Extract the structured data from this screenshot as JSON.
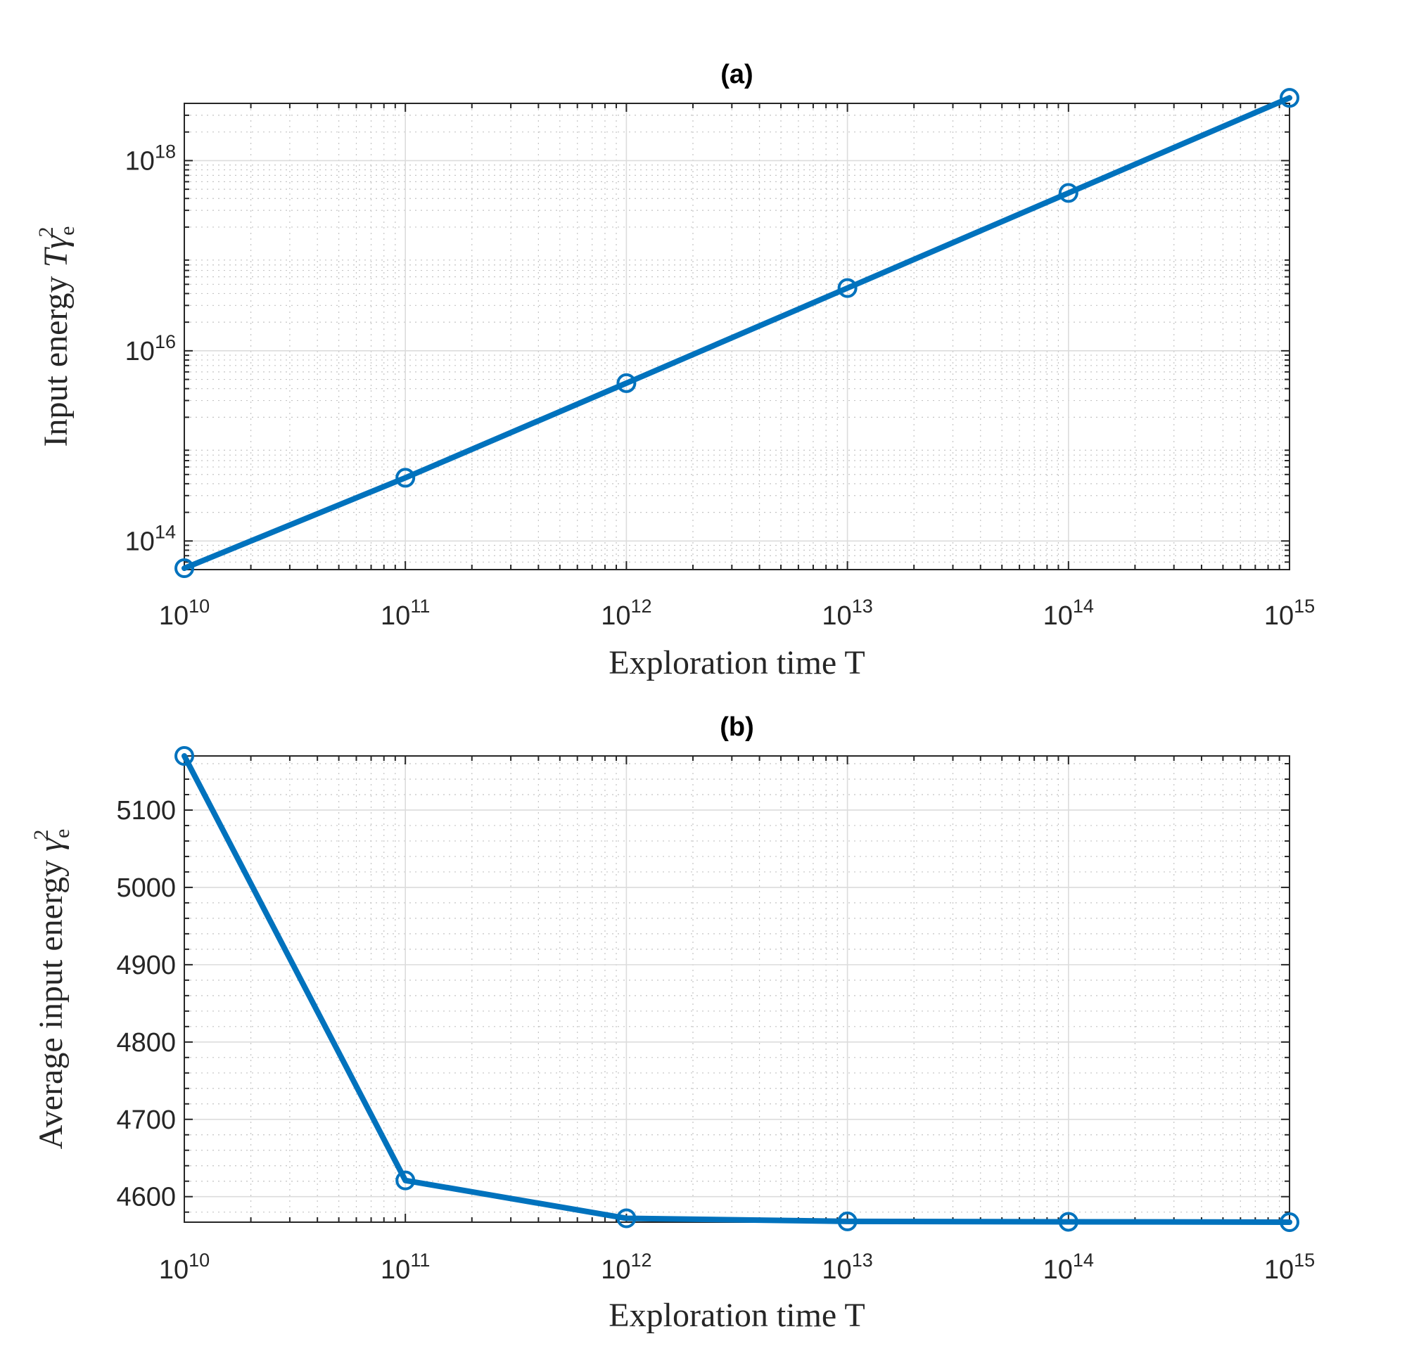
{
  "colors": {
    "series": "#0072BD"
  },
  "chart_data": [
    {
      "type": "line",
      "title": "(a)",
      "xlabel": "Exploration time T",
      "ylabel": {
        "prefix": "Input energy ",
        "var_T": "T",
        "gamma": "γ",
        "subscript": "e",
        "superscript": "2"
      },
      "x_scale": "log",
      "y_scale": "log",
      "xlim": [
        10000000000.0,
        1000000000000000.0
      ],
      "ylim": [
        50000000000000,
        4000000000000000000
      ],
      "x_ticks": [
        {
          "base": "10",
          "exp": "10",
          "value": 10000000000.0
        },
        {
          "base": "10",
          "exp": "11",
          "value": 100000000000.0
        },
        {
          "base": "10",
          "exp": "12",
          "value": 1000000000000.0
        },
        {
          "base": "10",
          "exp": "13",
          "value": 10000000000000.0
        },
        {
          "base": "10",
          "exp": "14",
          "value": 100000000000000.0
        },
        {
          "base": "10",
          "exp": "15",
          "value": 1000000000000000.0
        }
      ],
      "y_ticks": [
        {
          "base": "10",
          "exp": "14",
          "value": 100000000000000.0
        },
        {
          "base": "10",
          "exp": "16",
          "value": 1e+16
        },
        {
          "base": "10",
          "exp": "18",
          "value": 1e+18
        }
      ],
      "grid": true,
      "minor_grid": true,
      "x": [
        10000000000.0,
        100000000000.0,
        1000000000000.0,
        10000000000000.0,
        100000000000000.0,
        1000000000000000.0
      ],
      "series": [
        {
          "values": [
            51700000000000,
            462000000000000,
            4570000000000000,
            45700000000000000,
            457000000000000000,
            4570000000000000000
          ]
        }
      ]
    },
    {
      "type": "line",
      "title": "(b)",
      "xlabel": "Exploration time T",
      "ylabel": {
        "prefix": "Average input energy ",
        "gamma": "γ",
        "subscript": "e",
        "superscript": "2"
      },
      "x_scale": "log",
      "y_scale": "linear",
      "xlim": [
        10000000000.0,
        1000000000000000.0
      ],
      "ylim": [
        4567,
        5170
      ],
      "x_ticks": [
        {
          "base": "10",
          "exp": "10",
          "value": 10000000000.0
        },
        {
          "base": "10",
          "exp": "11",
          "value": 100000000000.0
        },
        {
          "base": "10",
          "exp": "12",
          "value": 1000000000000.0
        },
        {
          "base": "10",
          "exp": "13",
          "value": 10000000000000.0
        },
        {
          "base": "10",
          "exp": "14",
          "value": 100000000000000.0
        },
        {
          "base": "10",
          "exp": "15",
          "value": 1000000000000000.0
        }
      ],
      "y_ticks": [
        {
          "label": "4600",
          "value": 4600
        },
        {
          "label": "4700",
          "value": 4700
        },
        {
          "label": "4800",
          "value": 4800
        },
        {
          "label": "4900",
          "value": 4900
        },
        {
          "label": "5000",
          "value": 5000
        },
        {
          "label": "5100",
          "value": 5100
        }
      ],
      "grid": true,
      "minor_grid": true,
      "x": [
        10000000000.0,
        100000000000.0,
        1000000000000.0,
        10000000000000.0,
        100000000000000.0,
        1000000000000000.0
      ],
      "series": [
        {
          "values": [
            5170,
            4621,
            4572,
            4568,
            4567.5,
            4567
          ]
        }
      ]
    }
  ]
}
